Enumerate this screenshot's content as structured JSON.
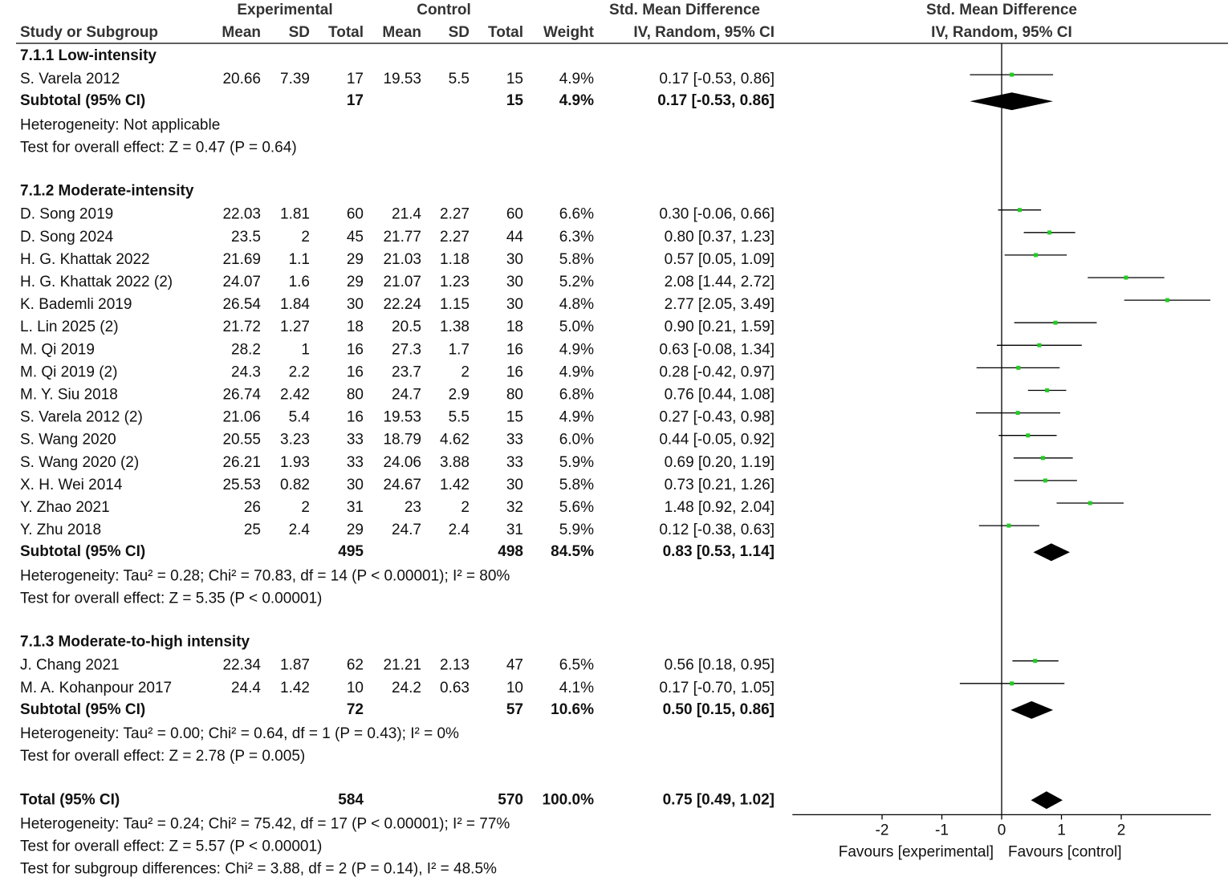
{
  "chart_data": {
    "type": "forest",
    "headers": {
      "top": [
        "Experimental",
        "Control",
        "Std. Mean Difference"
      ],
      "columns": [
        "Study or Subgroup",
        "Mean",
        "SD",
        "Total",
        "Mean",
        "SD",
        "Total",
        "Weight",
        "IV, Random, 95% CI"
      ],
      "plot": [
        "Std. Mean Difference",
        "IV, Random, 95% CI"
      ]
    },
    "groups": [
      {
        "title": "7.1.1 Low-intensity",
        "studies": [
          {
            "cells": [
              "S. Varela 2012",
              "20.66",
              "7.39",
              "17",
              "19.53",
              "5.5",
              "15",
              "4.9%"
            ],
            "effect": [
              0.17,
              -0.53,
              0.86
            ],
            "effect_label": "0.17 [-0.53, 0.86]"
          }
        ],
        "subtotal": {
          "cells": [
            "Subtotal (95% CI)",
            "17",
            "15",
            "4.9%"
          ],
          "effect": [
            0.17,
            -0.53,
            0.86
          ],
          "effect_label": "0.17 [-0.53, 0.86]"
        },
        "notes": [
          "Heterogeneity: Not applicable",
          "Test for overall effect: Z = 0.47 (P = 0.64)"
        ]
      },
      {
        "title": "7.1.2 Moderate-intensity",
        "studies": [
          {
            "cells": [
              "D. Song 2019",
              "22.03",
              "1.81",
              "60",
              "21.4",
              "2.27",
              "60",
              "6.6%"
            ],
            "effect": [
              0.3,
              -0.06,
              0.66
            ],
            "effect_label": "0.30 [-0.06, 0.66]"
          },
          {
            "cells": [
              "D. Song 2024",
              "23.5",
              "2",
              "45",
              "21.77",
              "2.27",
              "44",
              "6.3%"
            ],
            "effect": [
              0.8,
              0.37,
              1.23
            ],
            "effect_label": "0.80 [0.37, 1.23]"
          },
          {
            "cells": [
              "H. G. Khattak 2022",
              "21.69",
              "1.1",
              "29",
              "21.03",
              "1.18",
              "30",
              "5.8%"
            ],
            "effect": [
              0.57,
              0.05,
              1.09
            ],
            "effect_label": "0.57 [0.05, 1.09]"
          },
          {
            "cells": [
              "H. G. Khattak 2022 (2)",
              "24.07",
              "1.6",
              "29",
              "21.07",
              "1.23",
              "30",
              "5.2%"
            ],
            "effect": [
              2.08,
              1.44,
              2.72
            ],
            "effect_label": "2.08 [1.44, 2.72]"
          },
          {
            "cells": [
              "K. Bademli 2019",
              "26.54",
              "1.84",
              "30",
              "22.24",
              "1.15",
              "30",
              "4.8%"
            ],
            "effect": [
              2.77,
              2.05,
              3.49
            ],
            "effect_label": "2.77 [2.05, 3.49]"
          },
          {
            "cells": [
              "L. Lin 2025 (2)",
              "21.72",
              "1.27",
              "18",
              "20.5",
              "1.38",
              "18",
              "5.0%"
            ],
            "effect": [
              0.9,
              0.21,
              1.59
            ],
            "effect_label": "0.90 [0.21, 1.59]"
          },
          {
            "cells": [
              "M. Qi 2019",
              "28.2",
              "1",
              "16",
              "27.3",
              "1.7",
              "16",
              "4.9%"
            ],
            "effect": [
              0.63,
              -0.08,
              1.34
            ],
            "effect_label": "0.63 [-0.08, 1.34]"
          },
          {
            "cells": [
              "M. Qi 2019 (2)",
              "24.3",
              "2.2",
              "16",
              "23.7",
              "2",
              "16",
              "4.9%"
            ],
            "effect": [
              0.28,
              -0.42,
              0.97
            ],
            "effect_label": "0.28 [-0.42, 0.97]"
          },
          {
            "cells": [
              "M. Y. Siu 2018",
              "26.74",
              "2.42",
              "80",
              "24.7",
              "2.9",
              "80",
              "6.8%"
            ],
            "effect": [
              0.76,
              0.44,
              1.08
            ],
            "effect_label": "0.76 [0.44, 1.08]"
          },
          {
            "cells": [
              "S. Varela 2012 (2)",
              "21.06",
              "5.4",
              "16",
              "19.53",
              "5.5",
              "15",
              "4.9%"
            ],
            "effect": [
              0.27,
              -0.43,
              0.98
            ],
            "effect_label": "0.27 [-0.43, 0.98]"
          },
          {
            "cells": [
              "S. Wang 2020",
              "20.55",
              "3.23",
              "33",
              "18.79",
              "4.62",
              "33",
              "6.0%"
            ],
            "effect": [
              0.44,
              -0.05,
              0.92
            ],
            "effect_label": "0.44 [-0.05, 0.92]"
          },
          {
            "cells": [
              "S. Wang 2020 (2)",
              "26.21",
              "1.93",
              "33",
              "24.06",
              "3.88",
              "33",
              "5.9%"
            ],
            "effect": [
              0.69,
              0.2,
              1.19
            ],
            "effect_label": "0.69 [0.20, 1.19]"
          },
          {
            "cells": [
              "X. H. Wei 2014",
              "25.53",
              "0.82",
              "30",
              "24.67",
              "1.42",
              "30",
              "5.8%"
            ],
            "effect": [
              0.73,
              0.21,
              1.26
            ],
            "effect_label": "0.73 [0.21, 1.26]"
          },
          {
            "cells": [
              "Y. Zhao 2021",
              "26",
              "2",
              "31",
              "23",
              "2",
              "32",
              "5.6%"
            ],
            "effect": [
              1.48,
              0.92,
              2.04
            ],
            "effect_label": "1.48 [0.92, 2.04]"
          },
          {
            "cells": [
              "Y. Zhu 2018",
              "25",
              "2.4",
              "29",
              "24.7",
              "2.4",
              "31",
              "5.9%"
            ],
            "effect": [
              0.12,
              -0.38,
              0.63
            ],
            "effect_label": "0.12 [-0.38, 0.63]"
          }
        ],
        "subtotal": {
          "cells": [
            "Subtotal (95% CI)",
            "495",
            "498",
            "84.5%"
          ],
          "effect": [
            0.83,
            0.53,
            1.14
          ],
          "effect_label": "0.83 [0.53, 1.14]"
        },
        "notes": [
          "Heterogeneity: Tau² = 0.28; Chi² = 70.83, df = 14 (P < 0.00001); I² = 80%",
          "Test for overall effect: Z = 5.35 (P < 0.00001)"
        ]
      },
      {
        "title": "7.1.3 Moderate-to-high intensity",
        "studies": [
          {
            "cells": [
              "J. Chang 2021",
              "22.34",
              "1.87",
              "62",
              "21.21",
              "2.13",
              "47",
              "6.5%"
            ],
            "effect": [
              0.56,
              0.18,
              0.95
            ],
            "effect_label": "0.56 [0.18, 0.95]"
          },
          {
            "cells": [
              "M. A. Kohanpour 2017",
              "24.4",
              "1.42",
              "10",
              "24.2",
              "0.63",
              "10",
              "4.1%"
            ],
            "effect": [
              0.17,
              -0.7,
              1.05
            ],
            "effect_label": "0.17 [-0.70, 1.05]"
          }
        ],
        "subtotal": {
          "cells": [
            "Subtotal (95% CI)",
            "72",
            "57",
            "10.6%"
          ],
          "effect": [
            0.5,
            0.15,
            0.86
          ],
          "effect_label": "0.50 [0.15, 0.86]"
        },
        "notes": [
          "Heterogeneity: Tau² = 0.00; Chi² = 0.64, df = 1 (P = 0.43); I² = 0%",
          "Test for overall effect: Z = 2.78 (P = 0.005)"
        ]
      }
    ],
    "total": {
      "cells": [
        "Total (95% CI)",
        "584",
        "570",
        "100.0%"
      ],
      "effect": [
        0.75,
        0.49,
        1.02
      ],
      "effect_label": "0.75 [0.49, 1.02]"
    },
    "notes": [
      "Heterogeneity: Tau² = 0.24; Chi² = 75.42, df = 17 (P < 0.00001); I² = 77%",
      "Test for overall effect: Z = 5.57 (P < 0.00001)",
      "Test for subgroup differences: Chi² = 3.88, df = 2 (P = 0.14), I² = 48.5%"
    ],
    "xlim": [
      -3.5,
      3.5
    ],
    "xticks": [
      -2,
      -1,
      0,
      1,
      2
    ],
    "favours": [
      "Favours [experimental]",
      "Favours [control]"
    ],
    "marker_color": "#22cc22"
  }
}
